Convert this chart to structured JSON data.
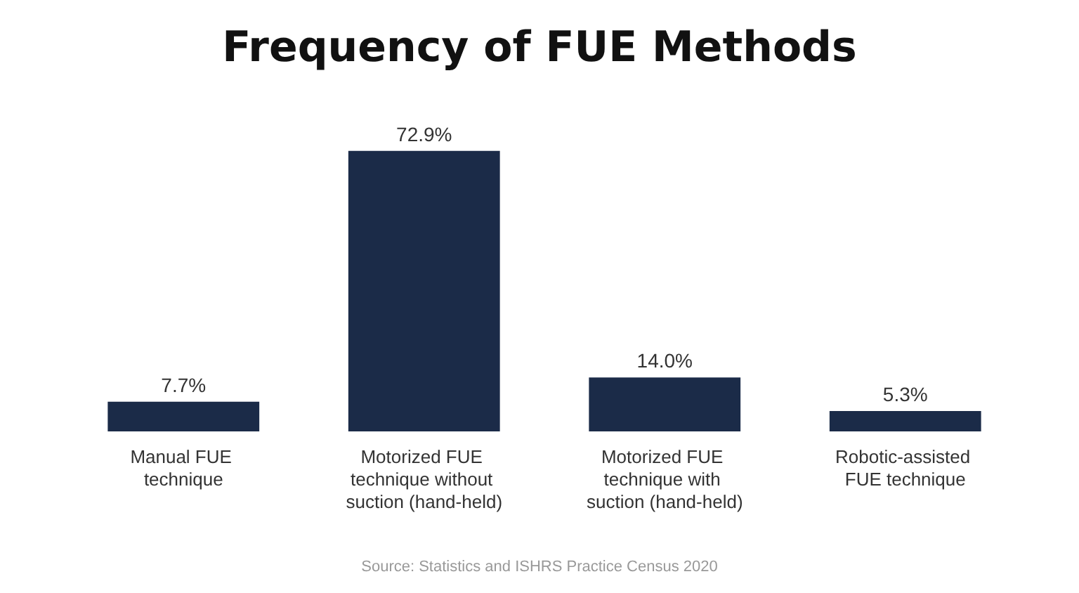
{
  "chart_data": {
    "type": "bar",
    "title": "Frequency of FUE Methods",
    "categories": [
      "Manual FUE technique",
      "Motorized FUE technique without suction (hand-held)",
      "Motorized FUE technique with suction (hand-held)",
      "Robotic-assisted FUE technique"
    ],
    "values": [
      7.7,
      72.9,
      14.0,
      5.3
    ],
    "value_labels": [
      "7.7%",
      "72.9%",
      "14.0%",
      "5.3%"
    ],
    "color": "#1b2b48",
    "annotations": [
      "Source: Statistics and ISHRS Practice Census 2020"
    ]
  }
}
